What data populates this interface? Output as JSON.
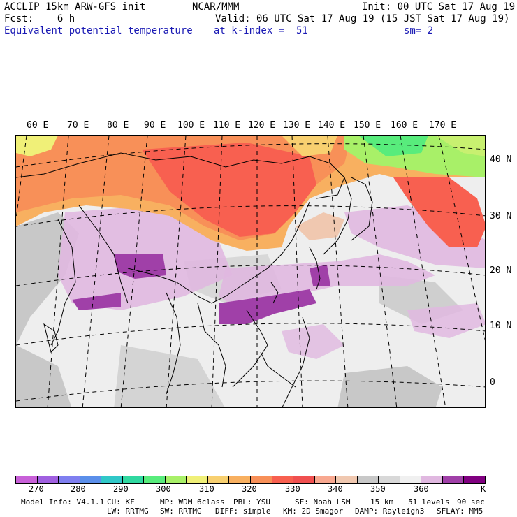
{
  "header": {
    "line1_left": "ACCLIP 15km ARW-GFS init",
    "line1_mid": "NCAR/MMM",
    "line1_right": "Init: 00 UTC Sat 17 Aug 19",
    "line2_left": "Fcst:    6 h",
    "line2_right": "Valid: 06 UTC Sat 17 Aug 19 (15 JST Sat 17 Aug 19)",
    "line3_left": "Equivalent potential temperature",
    "line3_mid": "at k-index =  51",
    "line3_right": "sm= 2"
  },
  "map": {
    "lon_labels": [
      "60 E",
      "70 E",
      "80 E",
      "90 E",
      "100 E",
      "110 E",
      "120 E",
      "130 E",
      "140 E",
      "150 E",
      "160 E",
      "170 E"
    ],
    "lat_labels": [
      "40 N",
      "30 N",
      "20 N",
      "10 N",
      "0"
    ]
  },
  "legend": {
    "colors": [
      "#c860d8",
      "#a060e0",
      "#7f7ff0",
      "#5b8fea",
      "#30c8c8",
      "#30d8a0",
      "#58ec7c",
      "#a8f068",
      "#f0f078",
      "#f8d070",
      "#f8b060",
      "#f89058",
      "#f86050",
      "#f05050",
      "#f8a890",
      "#f0c8b0",
      "#c8c8c8",
      "#d8d8d8",
      "#f0f0f0",
      "#e0b8e0",
      "#a040a8",
      "#800080"
    ],
    "ticks": [
      "270",
      "280",
      "290",
      "300",
      "310",
      "320",
      "330",
      "340",
      "350",
      "360"
    ],
    "unit": "K"
  },
  "footer": {
    "line1": [
      "Model Info: V4.1.1",
      "CU: KF",
      "MP: WDM 6class",
      "PBL: YSU",
      "SF: Noah LSM",
      "15 km",
      "51 levels",
      "90 sec"
    ],
    "line2": [
      "LW: RRTMG",
      "SW: RRTMG",
      "DIFF: simple",
      "KM: 2D Smagor",
      "DAMP: Rayleigh3",
      "SFLAY: MM5"
    ]
  }
}
